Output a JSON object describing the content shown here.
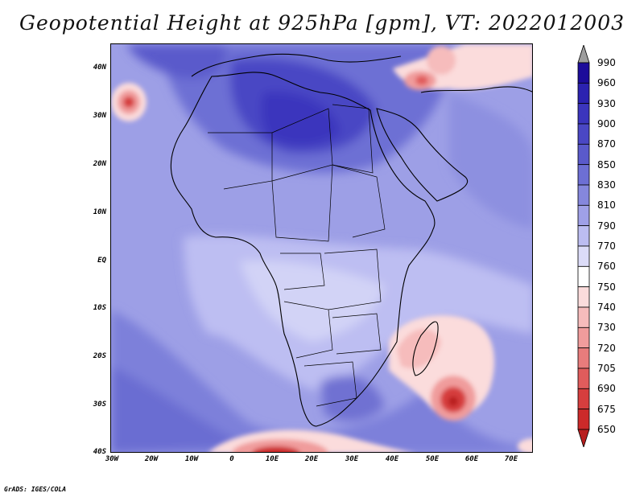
{
  "title": "Geopotential Height at 925hPa [gpm], VT: 2022012003",
  "credit": "GrADS: IGES/COLA",
  "lat_labels": [
    "40N",
    "30N",
    "20N",
    "10N",
    "EQ",
    "10S",
    "20S",
    "30S",
    "40S"
  ],
  "lon_labels": [
    "30W",
    "20W",
    "10W",
    "0",
    "10E",
    "20E",
    "30E",
    "40E",
    "50E",
    "60E",
    "70E"
  ],
  "colorbar": {
    "levels": [
      "990",
      "960",
      "930",
      "900",
      "870",
      "850",
      "830",
      "810",
      "790",
      "770",
      "760",
      "750",
      "740",
      "730",
      "720",
      "705",
      "690",
      "675",
      "650"
    ],
    "colors": [
      "#9e9e9e",
      "#1c0c9a",
      "#2b22b0",
      "#3b35bd",
      "#4a47c4",
      "#5a5acb",
      "#6d6fd4",
      "#8587dd",
      "#9fa0e7",
      "#bcbdf1",
      "#dcdcf8",
      "#ffffff",
      "#fbdcdc",
      "#f6bcbc",
      "#f09c9c",
      "#e87c7c",
      "#e05c5c",
      "#d63e3e",
      "#cc2a2a",
      "#b81e1e"
    ]
  },
  "icons": {
    "colorbar-top-arrow": "triangle-up",
    "colorbar-bottom-arrow": "triangle-down"
  }
}
